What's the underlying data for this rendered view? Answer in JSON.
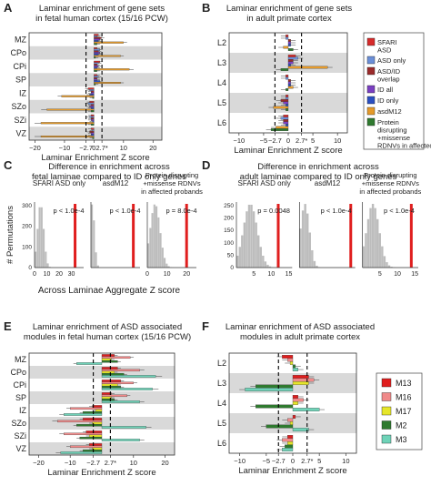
{
  "colors": {
    "sfari": "#d72a2a",
    "asd_only": "#6b8fd8",
    "asd_id": "#9b2a2a",
    "id_all": "#7a3fc2",
    "id_only": "#2a4fc2",
    "asdM12": "#e59a2a",
    "protein": "#2f7a2f",
    "m13": "#e01e1e",
    "m16": "#f08a8a",
    "m17": "#e6e62a",
    "m2": "#2f7a2f",
    "m3": "#6fd3b8",
    "band": "#d9d9d9",
    "hist": "#bdbdbd",
    "obs": "#e01e1e"
  },
  "panels": {
    "a": {
      "letter": "A",
      "title": "Laminar enrichment of gene sets",
      "title2": "in fetal human cortex (15/16 PCW)",
      "xlabel": "Laminar Enrichment Z score",
      "ticks": [
        "−20",
        "−10",
        "−2.7",
        "0",
        "2.7*",
        "10",
        "20"
      ]
    },
    "b": {
      "letter": "B",
      "title": "Laminar enrichment of gene sets",
      "title2": "in adult primate cortex",
      "xlabel": "Laminar Enrichment Z score",
      "ticks": [
        "−10",
        "−5",
        "−2.7",
        "0",
        "2.7*",
        "5",
        "10"
      ]
    },
    "c": {
      "letter": "C",
      "title": "Difference in enrichment across",
      "title2": "fetal laminae compared to ID only genes",
      "ylabel": "# Permutations",
      "xlabel": "Across Laminae Aggregate Z score"
    },
    "d": {
      "letter": "D",
      "title": "Difference in enrichment across",
      "title2": "adult laminae compared to ID only genes"
    },
    "e": {
      "letter": "E",
      "title": "Laminar enrichment of ASD associated",
      "title2": "modules in fetal human cortex (15/16 PCW)",
      "xlabel": "Laminar Enrichment Z score",
      "ticks": [
        "−20",
        "−10",
        "−2.7",
        "2.7*",
        "10",
        "20"
      ]
    },
    "f": {
      "letter": "F",
      "title": "Laminar enrichment of ASD associated",
      "title2": "modules in adult primate cortex",
      "xlabel": "Laminar Enrichment Z score",
      "ticks": [
        "−10",
        "−5",
        "−2.7",
        "0",
        "2.7*",
        "5",
        "10"
      ]
    }
  },
  "legend_ab": [
    {
      "label": "SFARI",
      "label2": "ASD",
      "label3": "",
      "label4": "",
      "color": "sfari"
    },
    {
      "label": "ASD only",
      "label2": "",
      "label3": "",
      "label4": "",
      "color": "asd_only"
    },
    {
      "label": "ASD/ID",
      "label2": "overlap",
      "label3": "",
      "label4": "",
      "color": "asd_id"
    },
    {
      "label": "ID all",
      "label2": "",
      "label3": "",
      "label4": "",
      "color": "id_all"
    },
    {
      "label": "ID only",
      "label2": "",
      "label3": "",
      "label4": "",
      "color": "id_only"
    },
    {
      "label": "asdM12",
      "label2": "",
      "label3": "",
      "label4": "",
      "color": "asdM12"
    },
    {
      "label": "Protein",
      "label2": "disrupting",
      "label3": "+missense",
      "label4": "RDNVs in affected probands",
      "color": "protein"
    }
  ],
  "legend_ef": [
    {
      "label": "M13",
      "color": "m13"
    },
    {
      "label": "M16",
      "color": "m16"
    },
    {
      "label": "M17",
      "color": "m17"
    },
    {
      "label": "M2",
      "color": "m2"
    },
    {
      "label": "M3",
      "color": "m3"
    }
  ],
  "chart_data": [
    {
      "id": "a",
      "type": "bar",
      "orientation": "horizontal",
      "categories": [
        "MZ",
        "CPo",
        "CPi",
        "SP",
        "IZ",
        "SZo",
        "SZi",
        "VZ"
      ],
      "xlim": [
        -22,
        23
      ],
      "thresholds": [
        -2.7,
        2.7
      ],
      "series": [
        {
          "name": "SFARI ASD",
          "color": "sfari",
          "values": [
            1.5,
            1.0,
            2.0,
            1.0,
            -2.0,
            -1.5,
            -1.0,
            -1.0
          ]
        },
        {
          "name": "ASD only",
          "color": "asd_only",
          "values": [
            1.0,
            2.0,
            1.5,
            1.5,
            -1.5,
            -2.0,
            -1.5,
            -0.5
          ]
        },
        {
          "name": "ASD/ID overlap",
          "color": "asd_id",
          "values": [
            2.5,
            1.5,
            1.0,
            1.0,
            -1.0,
            -1.0,
            -1.0,
            -1.5
          ]
        },
        {
          "name": "ID all",
          "color": "id_all",
          "values": [
            2.0,
            2.0,
            1.5,
            1.0,
            -1.0,
            -1.5,
            -1.0,
            -1.0
          ]
        },
        {
          "name": "ID only",
          "color": "id_only",
          "values": [
            1.5,
            1.5,
            1.0,
            2.0,
            -1.5,
            -1.0,
            -0.5,
            -1.0
          ]
        },
        {
          "name": "asdM12",
          "color": "asdM12",
          "values": [
            10,
            9,
            12,
            9,
            -11,
            -16,
            -18,
            -18
          ]
        },
        {
          "name": "Protein disrupting +missense RDNVs in affected probands",
          "color": "protein",
          "values": [
            1.0,
            0.5,
            1.0,
            0.5,
            -0.5,
            -1.0,
            -1.0,
            -0.5
          ]
        }
      ]
    },
    {
      "id": "b",
      "type": "bar",
      "orientation": "horizontal",
      "categories": [
        "L2",
        "L3",
        "L4",
        "L5",
        "L6"
      ],
      "xlim": [
        -12,
        12
      ],
      "thresholds": [
        -2.7,
        2.7
      ],
      "series": [
        {
          "name": "SFARI ASD",
          "color": "sfari",
          "values": [
            -0.5,
            1.5,
            -0.5,
            -0.5,
            -1.0
          ]
        },
        {
          "name": "ASD only",
          "color": "asd_only",
          "values": [
            -0.5,
            2.0,
            -0.5,
            -0.5,
            -1.5
          ]
        },
        {
          "name": "ASD/ID overlap",
          "color": "asd_id",
          "values": [
            0.5,
            1.0,
            0.5,
            -1.5,
            -1.0
          ]
        },
        {
          "name": "ID all",
          "color": "id_all",
          "values": [
            0.5,
            1.0,
            0.5,
            -1.0,
            -1.0
          ]
        },
        {
          "name": "ID only",
          "color": "id_only",
          "values": [
            0.5,
            0.5,
            0.5,
            -0.5,
            -0.5
          ]
        },
        {
          "name": "asdM12",
          "color": "asdM12",
          "values": [
            -1.0,
            8.0,
            1.0,
            -3.0,
            -2.5
          ]
        },
        {
          "name": "Protein disrupting +missense RDNVs in affected probands",
          "color": "protein",
          "values": [
            1.0,
            -1.5,
            -0.5,
            -0.5,
            -3.5
          ]
        }
      ]
    },
    {
      "id": "c",
      "type": "histogram",
      "subplots": [
        {
          "label": "SFARI ASD only",
          "pval": "p < 1.0e-4",
          "obs": 33,
          "xlim": [
            0,
            40
          ],
          "ticks": [
            "0",
            "10",
            "20",
            "30"
          ],
          "yticks": [
            "0",
            "100",
            "200",
            "300"
          ],
          "peak": 5,
          "spread": 2.5
        },
        {
          "label": "asdM12",
          "pval": "p < 1.0e-4",
          "obs": 95,
          "xlim": [
            0,
            110
          ],
          "ticks": [],
          "yticks": [],
          "peak": 3,
          "spread": 5
        },
        {
          "label": "Protein disrupting",
          "label2": "+missense RDNVs",
          "label3": "in affected probands",
          "pval": "p = 8.0e-4",
          "obs": 20,
          "xlim": [
            0,
            25
          ],
          "ticks": [
            "0",
            "10",
            "20"
          ],
          "yticks": [],
          "peak": 4,
          "spread": 2.5
        }
      ]
    },
    {
      "id": "d",
      "type": "histogram",
      "subplots": [
        {
          "label": "SFARI ASD only",
          "pval": "p = 0.0048",
          "obs": 12,
          "xlim": [
            0,
            16
          ],
          "ticks": [
            "5",
            "10",
            "15"
          ],
          "yticks": [
            "0",
            "50",
            "100",
            "150",
            "200",
            "250"
          ],
          "peak": 4,
          "spread": 2.0
        },
        {
          "label": "asdM12",
          "pval": "p < 1.0e-4",
          "obs": 46,
          "xlim": [
            0,
            50
          ],
          "ticks": [],
          "yticks": [],
          "peak": 5,
          "spread": 4
        },
        {
          "label": "Protein disrupting",
          "label2": "+missense RDNVs",
          "label3": "in affected probands",
          "pval": "p < 1.0e-4",
          "obs": 14,
          "xlim": [
            0,
            16
          ],
          "ticks": [
            "5",
            "10",
            "15"
          ],
          "yticks": [],
          "peak": 3,
          "spread": 1.8
        }
      ]
    },
    {
      "id": "e",
      "type": "bar",
      "orientation": "horizontal",
      "categories": [
        "MZ",
        "CPo",
        "CPi",
        "SP",
        "IZ",
        "SZo",
        "SZi",
        "VZ"
      ],
      "xlim": [
        -23,
        23
      ],
      "thresholds": [
        -2.7,
        2.7
      ],
      "series": [
        {
          "name": "M13",
          "color": "m13",
          "values": [
            4,
            5,
            6,
            3,
            -3,
            -6,
            -5,
            -4
          ]
        },
        {
          "name": "M16",
          "color": "m16",
          "values": [
            9,
            12,
            10,
            8,
            -10,
            -14,
            -12,
            -10
          ]
        },
        {
          "name": "M17",
          "color": "m17",
          "values": [
            3,
            4,
            5,
            3,
            -2,
            -3,
            -4,
            -3
          ]
        },
        {
          "name": "M2",
          "color": "m2",
          "values": [
            5,
            7,
            6,
            4,
            -6,
            -8,
            -7,
            -6
          ]
        },
        {
          "name": "M3",
          "color": "m3",
          "values": [
            -8,
            17,
            16,
            12,
            -12,
            14,
            12,
            -13
          ]
        }
      ]
    },
    {
      "id": "f",
      "type": "bar",
      "orientation": "horizontal",
      "categories": [
        "L2",
        "L3",
        "L4",
        "L5",
        "L6"
      ],
      "xlim": [
        -12,
        12
      ],
      "thresholds": [
        -2.7,
        2.7
      ],
      "series": [
        {
          "name": "M13",
          "color": "m13",
          "values": [
            -2,
            3,
            1,
            0.5,
            -1
          ]
        },
        {
          "name": "M16",
          "color": "m16",
          "values": [
            -1,
            4,
            2,
            -1,
            -2
          ]
        },
        {
          "name": "M17",
          "color": "m17",
          "values": [
            -0.5,
            3,
            1,
            -0.5,
            -1
          ]
        },
        {
          "name": "M2",
          "color": "m2",
          "values": [
            0.5,
            -7,
            -7,
            -5,
            -1.5
          ]
        },
        {
          "name": "M3",
          "color": "m3",
          "values": [
            1,
            -9,
            5,
            3,
            -2
          ]
        }
      ]
    }
  ]
}
